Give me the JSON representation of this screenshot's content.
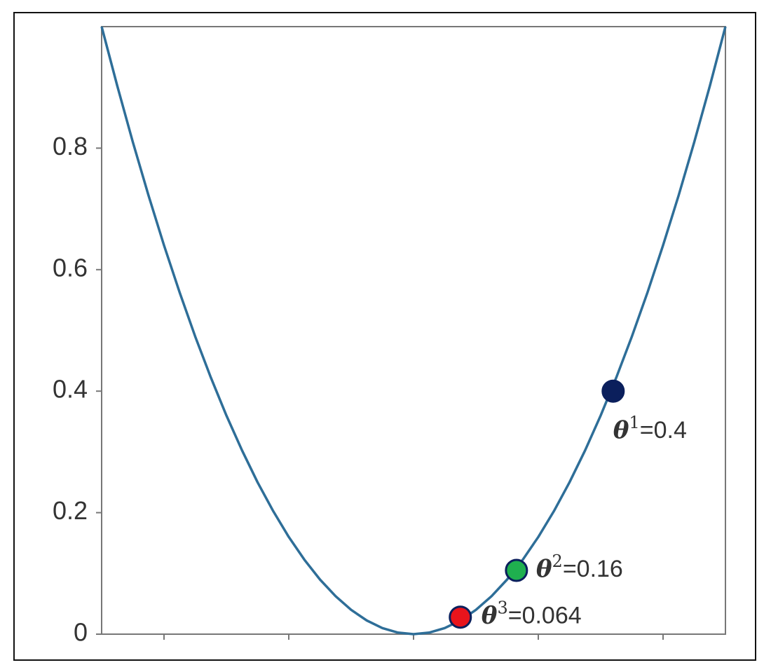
{
  "chart_data": {
    "type": "line",
    "xlim": [
      -1,
      1
    ],
    "ylim": [
      0,
      1
    ],
    "xticks": [
      -0.8,
      -0.4,
      0,
      0.4,
      0.8
    ],
    "yticks": [
      0,
      0.2,
      0.4,
      0.6,
      0.8
    ],
    "series": [
      {
        "color": "#2e6e98",
        "x": [
          -1,
          -0.95,
          -0.9,
          -0.85,
          -0.8,
          -0.75,
          -0.7,
          -0.65,
          -0.6,
          -0.55,
          -0.5,
          -0.45,
          -0.4,
          -0.35,
          -0.3,
          -0.25,
          -0.2,
          -0.15,
          -0.1,
          -0.05,
          0,
          0.05,
          0.1,
          0.15,
          0.2,
          0.25,
          0.3,
          0.35,
          0.4,
          0.45,
          0.5,
          0.55,
          0.6,
          0.65,
          0.7,
          0.75,
          0.8,
          0.85,
          0.9,
          0.95,
          1
        ],
        "values": [
          1,
          0.9025,
          0.81,
          0.7225,
          0.64,
          0.5625,
          0.49,
          0.4225,
          0.36,
          0.3025,
          0.25,
          0.2025,
          0.16,
          0.1225,
          0.09,
          0.0625,
          0.04,
          0.0225,
          0.01,
          0.0025,
          0,
          0.0025,
          0.01,
          0.0225,
          0.04,
          0.0625,
          0.09,
          0.1225,
          0.16,
          0.2025,
          0.25,
          0.3025,
          0.36,
          0.4225,
          0.49,
          0.5625,
          0.64,
          0.7225,
          0.81,
          0.9025,
          1
        ]
      }
    ],
    "points": [
      {
        "x": 0.64,
        "y": 0.4,
        "color": "#0b1f5c",
        "label": {
          "symbol": "θ",
          "sup": "1",
          "text": "=0.4"
        }
      },
      {
        "x": 0.33,
        "y": 0.105,
        "color": "#1fb04f",
        "label": {
          "symbol": "θ",
          "sup": "2",
          "text": "=0.16"
        }
      },
      {
        "x": 0.15,
        "y": 0.028,
        "color": "#e8141c",
        "label": {
          "symbol": "θ",
          "sup": "3",
          "text": "=0.064"
        }
      }
    ]
  }
}
